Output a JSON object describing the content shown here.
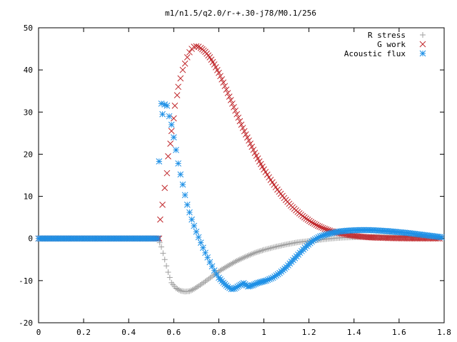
{
  "chart_data": {
    "type": "scatter",
    "title": "m1/n1.5/q2.0/r-+.30-j78/M0.1/256",
    "xlabel": "",
    "ylabel": "",
    "xlim": [
      0,
      1.8
    ],
    "ylim": [
      -20,
      50
    ],
    "x_ticks": [
      "0",
      "0.2",
      "0.4",
      "0.6",
      "0.8",
      "1",
      "1.2",
      "1.4",
      "1.6",
      "1.8"
    ],
    "y_ticks": [
      "-20",
      "-10",
      "0",
      "10",
      "20",
      "30",
      "40",
      "50"
    ],
    "grid": false,
    "legend_position": "top-right",
    "series": [
      {
        "name": "R stress",
        "marker": "plus",
        "color": "#a0a0a0",
        "points": [
          [
            0.0,
            0
          ],
          [
            0.1,
            0
          ],
          [
            0.2,
            0
          ],
          [
            0.3,
            0
          ],
          [
            0.4,
            0
          ],
          [
            0.5,
            0
          ],
          [
            0.53,
            0
          ],
          [
            0.545,
            -2
          ],
          [
            0.56,
            -5
          ],
          [
            0.575,
            -8
          ],
          [
            0.59,
            -10.5
          ],
          [
            0.61,
            -11.8
          ],
          [
            0.63,
            -12.4
          ],
          [
            0.65,
            -12.6
          ],
          [
            0.67,
            -12.5
          ],
          [
            0.69,
            -12.0
          ],
          [
            0.71,
            -11.3
          ],
          [
            0.74,
            -10.2
          ],
          [
            0.77,
            -9.0
          ],
          [
            0.8,
            -7.8
          ],
          [
            0.84,
            -6.5
          ],
          [
            0.88,
            -5.3
          ],
          [
            0.92,
            -4.3
          ],
          [
            0.96,
            -3.4
          ],
          [
            1.0,
            -2.7
          ],
          [
            1.05,
            -2.0
          ],
          [
            1.1,
            -1.4
          ],
          [
            1.15,
            -0.9
          ],
          [
            1.2,
            -0.6
          ],
          [
            1.25,
            -0.3
          ],
          [
            1.3,
            0
          ],
          [
            1.35,
            0.2
          ],
          [
            1.4,
            0.3
          ],
          [
            1.45,
            0.4
          ],
          [
            1.5,
            0.4
          ],
          [
            1.55,
            0.4
          ],
          [
            1.6,
            0.35
          ],
          [
            1.65,
            0.3
          ],
          [
            1.7,
            0.25
          ],
          [
            1.75,
            0.2
          ],
          [
            1.78,
            0.2
          ]
        ]
      },
      {
        "name": "G work",
        "marker": "cross",
        "color": "#c0282c",
        "points": [
          [
            0.0,
            0
          ],
          [
            0.1,
            0
          ],
          [
            0.2,
            0
          ],
          [
            0.3,
            0
          ],
          [
            0.4,
            0
          ],
          [
            0.5,
            0
          ],
          [
            0.535,
            0
          ],
          [
            0.54,
            4.5
          ],
          [
            0.55,
            8
          ],
          [
            0.56,
            12
          ],
          [
            0.57,
            15.5
          ],
          [
            0.575,
            19.5
          ],
          [
            0.585,
            22.5
          ],
          [
            0.59,
            25.5
          ],
          [
            0.6,
            28.5
          ],
          [
            0.605,
            31.5
          ],
          [
            0.615,
            34
          ],
          [
            0.62,
            36
          ],
          [
            0.63,
            38
          ],
          [
            0.64,
            40
          ],
          [
            0.65,
            41.5
          ],
          [
            0.66,
            43
          ],
          [
            0.67,
            44.2
          ],
          [
            0.68,
            45
          ],
          [
            0.69,
            45.5
          ],
          [
            0.7,
            45.6
          ],
          [
            0.71,
            45.5
          ],
          [
            0.72,
            45.2
          ],
          [
            0.74,
            44.3
          ],
          [
            0.76,
            43
          ],
          [
            0.78,
            41.3
          ],
          [
            0.8,
            39.3
          ],
          [
            0.82,
            37
          ],
          [
            0.84,
            34.5
          ],
          [
            0.86,
            32
          ],
          [
            0.88,
            29.5
          ],
          [
            0.9,
            27
          ],
          [
            0.92,
            24.7
          ],
          [
            0.94,
            22.5
          ],
          [
            0.96,
            20.3
          ],
          [
            0.98,
            18.3
          ],
          [
            1.0,
            16.4
          ],
          [
            1.03,
            13.9
          ],
          [
            1.06,
            11.6
          ],
          [
            1.09,
            9.6
          ],
          [
            1.12,
            7.8
          ],
          [
            1.15,
            6.3
          ],
          [
            1.18,
            5.0
          ],
          [
            1.21,
            3.9
          ],
          [
            1.24,
            3.0
          ],
          [
            1.27,
            2.3
          ],
          [
            1.3,
            1.7
          ],
          [
            1.34,
            1.2
          ],
          [
            1.38,
            0.8
          ],
          [
            1.42,
            0.5
          ],
          [
            1.46,
            0.3
          ],
          [
            1.5,
            0.2
          ],
          [
            1.55,
            0.1
          ],
          [
            1.6,
            0.05
          ],
          [
            1.65,
            0.02
          ],
          [
            1.7,
            0.01
          ],
          [
            1.75,
            0
          ],
          [
            1.78,
            0
          ]
        ]
      },
      {
        "name": "Acoustic flux",
        "marker": "star",
        "color": "#1e90e6",
        "points": [
          [
            0.0,
            0
          ],
          [
            0.1,
            0
          ],
          [
            0.2,
            0
          ],
          [
            0.3,
            0
          ],
          [
            0.4,
            0
          ],
          [
            0.5,
            0
          ],
          [
            0.53,
            0
          ],
          [
            0.535,
            18.3
          ],
          [
            0.545,
            32
          ],
          [
            0.55,
            29.5
          ],
          [
            0.56,
            31.8
          ],
          [
            0.57,
            31.5
          ],
          [
            0.58,
            29
          ],
          [
            0.59,
            27
          ],
          [
            0.6,
            24
          ],
          [
            0.61,
            21
          ],
          [
            0.62,
            17.8
          ],
          [
            0.63,
            15.2
          ],
          [
            0.64,
            12.8
          ],
          [
            0.65,
            10.3
          ],
          [
            0.66,
            8
          ],
          [
            0.67,
            6.2
          ],
          [
            0.68,
            4.5
          ],
          [
            0.69,
            3
          ],
          [
            0.7,
            1.6
          ],
          [
            0.71,
            0.3
          ],
          [
            0.72,
            -1
          ],
          [
            0.73,
            -2.2
          ],
          [
            0.74,
            -3.4
          ],
          [
            0.75,
            -4.5
          ],
          [
            0.76,
            -5.6
          ],
          [
            0.77,
            -6.6
          ],
          [
            0.78,
            -7.6
          ],
          [
            0.79,
            -8.5
          ],
          [
            0.8,
            -9.3
          ],
          [
            0.82,
            -10.5
          ],
          [
            0.84,
            -11.5
          ],
          [
            0.855,
            -12
          ],
          [
            0.87,
            -11.9
          ],
          [
            0.89,
            -11.2
          ],
          [
            0.91,
            -10.6
          ],
          [
            0.93,
            -11.4
          ],
          [
            0.95,
            -11.1
          ],
          [
            0.97,
            -10.6
          ],
          [
            0.99,
            -10.3
          ],
          [
            1.01,
            -10.0
          ],
          [
            1.04,
            -9.3
          ],
          [
            1.07,
            -8.2
          ],
          [
            1.1,
            -6.8
          ],
          [
            1.13,
            -5.1
          ],
          [
            1.16,
            -3.4
          ],
          [
            1.19,
            -1.8
          ],
          [
            1.22,
            -0.4
          ],
          [
            1.25,
            0.5
          ],
          [
            1.28,
            1.0
          ],
          [
            1.31,
            1.4
          ],
          [
            1.34,
            1.7
          ],
          [
            1.37,
            1.85
          ],
          [
            1.4,
            1.95
          ],
          [
            1.43,
            2.0
          ],
          [
            1.46,
            2.0
          ],
          [
            1.49,
            1.95
          ],
          [
            1.52,
            1.85
          ],
          [
            1.55,
            1.75
          ],
          [
            1.58,
            1.6
          ],
          [
            1.61,
            1.45
          ],
          [
            1.64,
            1.3
          ],
          [
            1.67,
            1.1
          ],
          [
            1.7,
            0.9
          ],
          [
            1.73,
            0.7
          ],
          [
            1.76,
            0.5
          ],
          [
            1.79,
            0.3
          ]
        ]
      }
    ]
  }
}
